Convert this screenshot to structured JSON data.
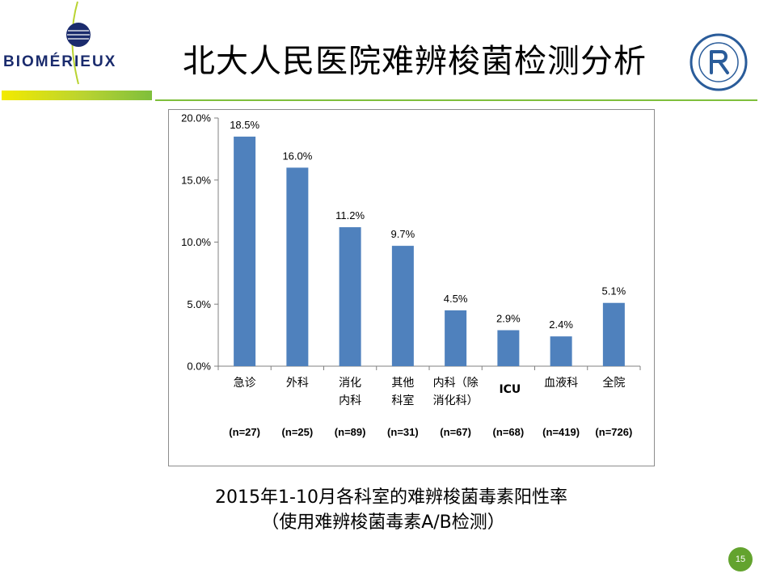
{
  "slide": {
    "title": "北大人民医院难辨梭菌检测分析",
    "brand": "BIOMÉRIEUX",
    "caption_line1": "2015年1-10月各科室的难辨梭菌毒素阳性率",
    "caption_line2": "（使用难辨梭菌毒素A/B检测）",
    "page_number": "15",
    "colors": {
      "bar": "#4f81bd",
      "accent_green": "#7fbf3c",
      "brand_navy": "#1a2b6d"
    },
    "logo_icon": "biomerieux-logo-icon",
    "seal_icon": "peking-university-peoples-hospital-seal-icon"
  },
  "chart_data": {
    "type": "bar",
    "categories": [
      [
        "急诊"
      ],
      [
        "外科"
      ],
      [
        "消化",
        "内科"
      ],
      [
        "其他",
        "科室"
      ],
      [
        "内科（除",
        "消化科）"
      ],
      [
        "ICU"
      ],
      [
        "血液科"
      ],
      [
        "全院"
      ]
    ],
    "values": [
      18.5,
      16.0,
      11.2,
      9.7,
      4.5,
      2.9,
      2.4,
      5.1
    ],
    "data_labels": [
      "18.5%",
      "16.0%",
      "11.2%",
      "9.7%",
      "4.5%",
      "2.9%",
      "2.4%",
      "5.1%"
    ],
    "sample_sizes": [
      "(n=27)",
      "(n=25)",
      "(n=89)",
      "(n=31)",
      "(n=67)",
      "(n=68)",
      "(n=419)",
      "(n=726)"
    ],
    "yticks": [
      0,
      5,
      10,
      15,
      20
    ],
    "ytick_labels": [
      "0.0%",
      "5.0%",
      "10.0%",
      "15.0%",
      "20.0%"
    ],
    "ylim": [
      0,
      20
    ],
    "grid": false,
    "legend": "none",
    "title": "",
    "xlabel": "",
    "ylabel": ""
  }
}
